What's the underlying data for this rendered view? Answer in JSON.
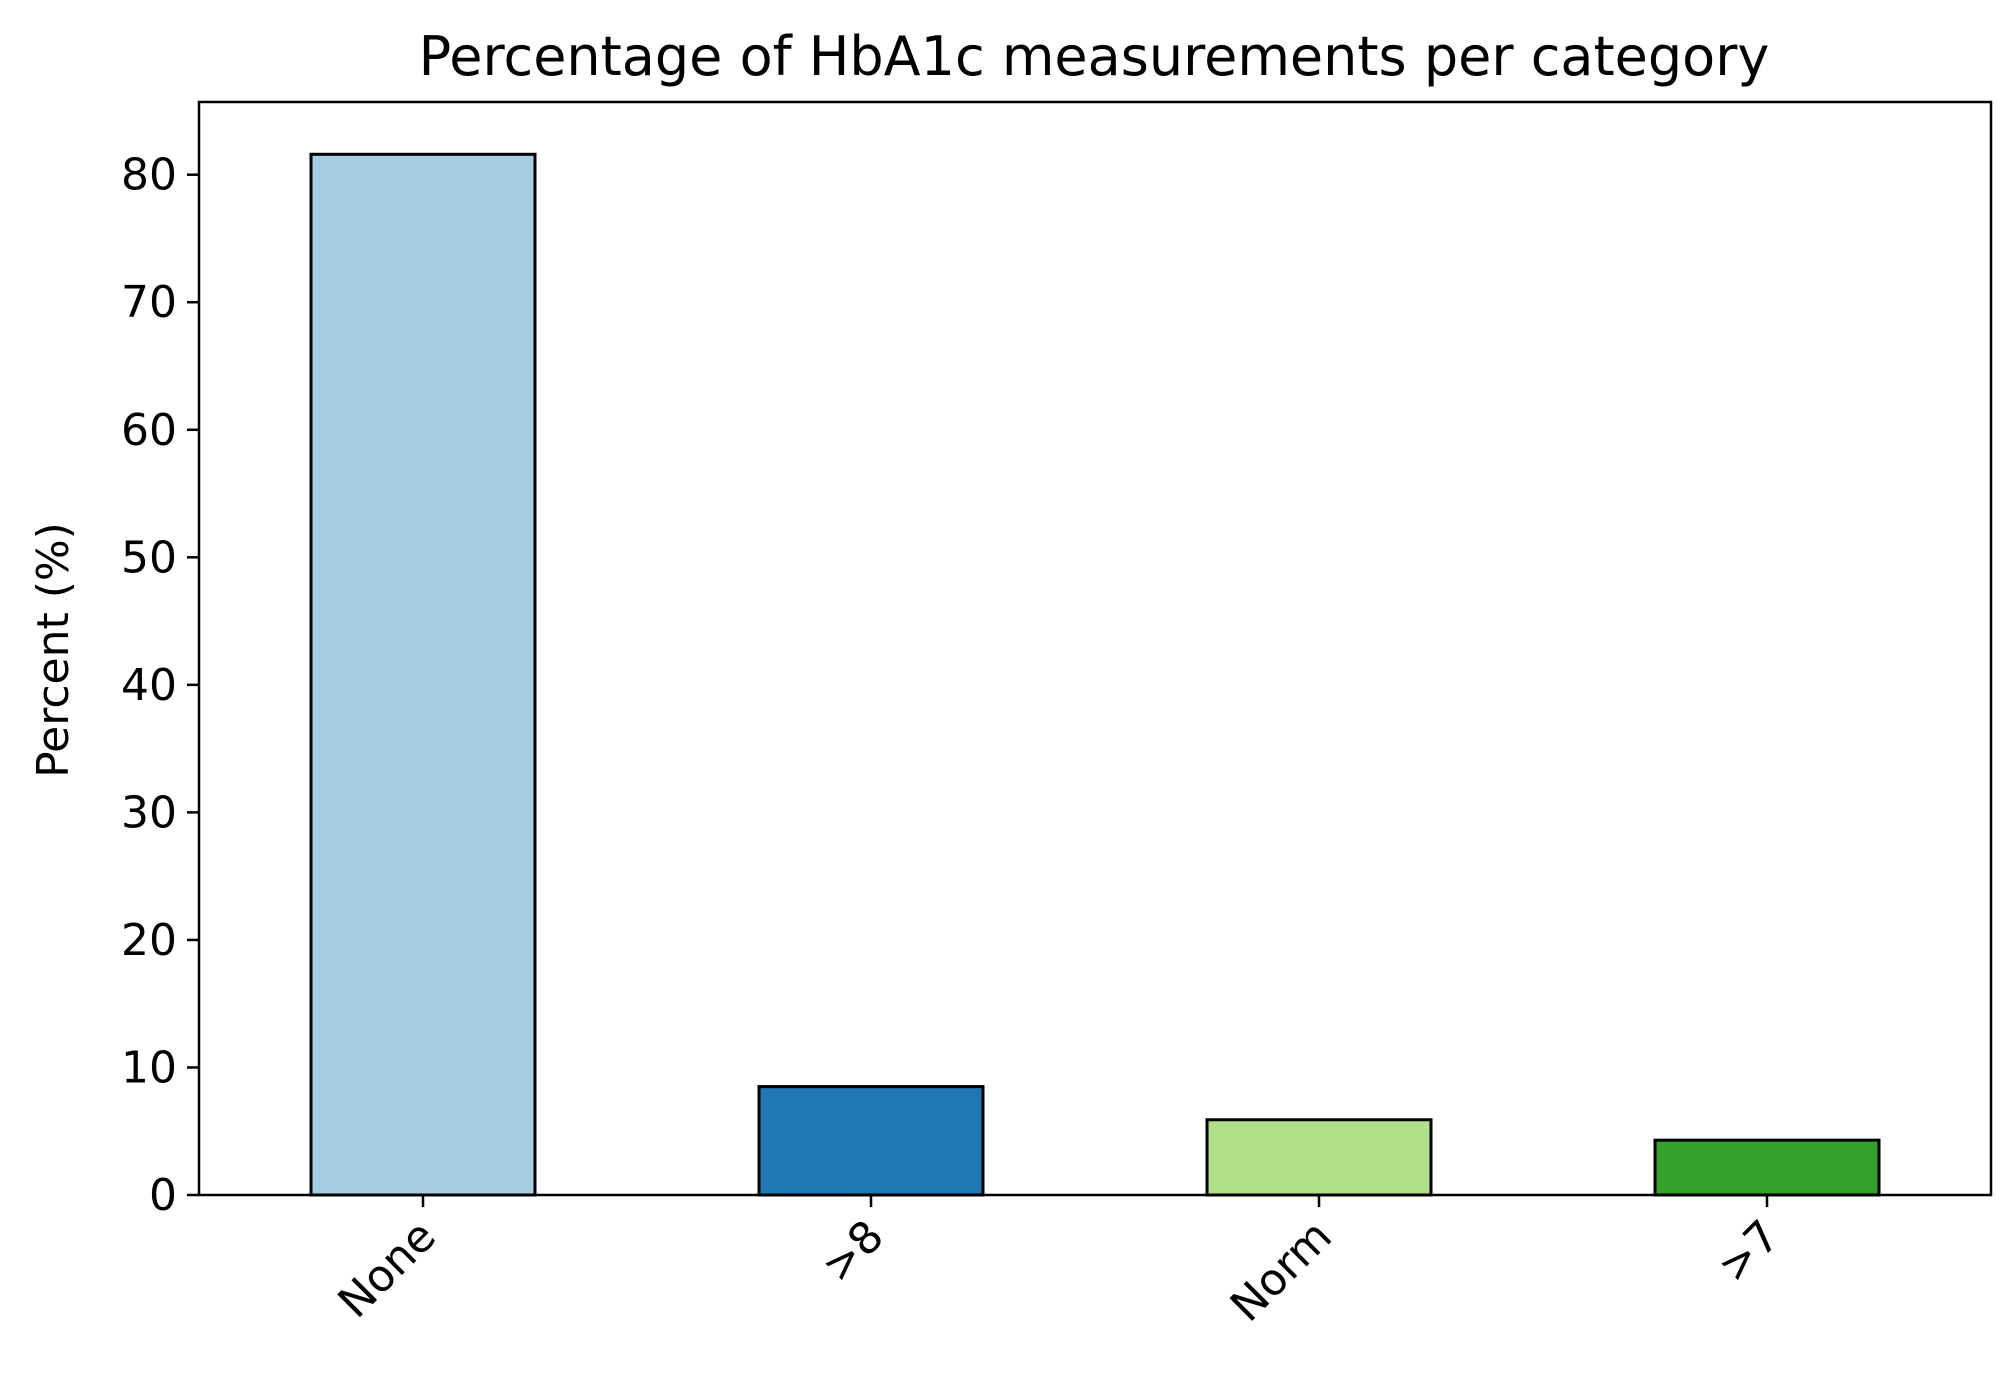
{
  "chart_data": {
    "type": "bar",
    "title": "Percentage of HbA1c measurements per category",
    "xlabel": "",
    "ylabel": "Percent (%)",
    "categories": [
      "None",
      ">8",
      "Norm",
      ">7"
    ],
    "values": [
      81.6,
      8.5,
      5.9,
      4.3
    ],
    "colors": [
      "#a6cee3",
      "#1f78b4",
      "#b2df8a",
      "#33a02c"
    ],
    "ylim": [
      0,
      85.7
    ],
    "yticks": [
      0,
      10,
      20,
      30,
      40,
      50,
      60,
      70,
      80
    ],
    "grid": false,
    "legend": "none"
  }
}
